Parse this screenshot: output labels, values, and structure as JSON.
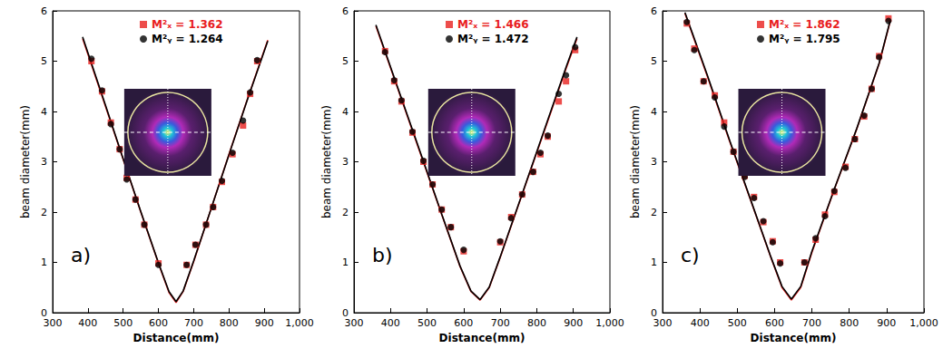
{
  "chart_data": [
    {
      "type": "scatter",
      "annotation": "a)",
      "x_label": "Distance(mm)",
      "y_label": "beam diameter(mm)",
      "xlim": [
        300,
        1000
      ],
      "xticks": [
        300,
        400,
        500,
        600,
        700,
        800,
        900,
        1000
      ],
      "ylim": [
        0,
        6
      ],
      "yticks": [
        0,
        1,
        2,
        3,
        4,
        5,
        6
      ],
      "grid": false,
      "series": [
        {
          "name": "M²ₓ = 1.362",
          "type": "scatter",
          "marker": "square",
          "color": "#e8201e",
          "x": [
            410,
            440,
            465,
            490,
            510,
            535,
            560,
            600,
            680,
            705,
            735,
            755,
            780,
            810,
            840,
            860,
            880
          ],
          "values": [
            5.0,
            4.4,
            3.78,
            3.25,
            2.68,
            2.25,
            1.75,
            0.98,
            0.95,
            1.35,
            1.75,
            2.1,
            2.6,
            3.15,
            3.72,
            4.35,
            5.0
          ]
        },
        {
          "name": "M²ᵧ = 1.264",
          "type": "scatter",
          "marker": "circle",
          "color": "#000000",
          "x": [
            410,
            440,
            465,
            490,
            510,
            535,
            560,
            600,
            680,
            705,
            735,
            755,
            780,
            810,
            840,
            860,
            880
          ],
          "values": [
            5.05,
            4.42,
            3.75,
            3.25,
            2.65,
            2.25,
            1.75,
            0.95,
            0.95,
            1.35,
            1.75,
            2.1,
            2.62,
            3.18,
            3.82,
            4.38,
            5.02
          ]
        },
        {
          "type": "line",
          "line_style": "solid",
          "color": "#e8201e",
          "x": [
            385,
            450,
            500,
            550,
            600,
            630,
            650,
            670,
            700,
            750,
            800,
            850,
            910
          ],
          "values": [
            5.45,
            4.1,
            3.05,
            2.0,
            0.98,
            0.4,
            0.2,
            0.42,
            1.02,
            2.08,
            3.15,
            4.2,
            5.42
          ]
        },
        {
          "type": "line",
          "line_style": "solid",
          "color": "#000000",
          "x": [
            385,
            450,
            500,
            550,
            600,
            630,
            650,
            670,
            700,
            750,
            800,
            850,
            910
          ],
          "values": [
            5.48,
            4.12,
            3.06,
            2.01,
            0.99,
            0.42,
            0.22,
            0.43,
            1.03,
            2.08,
            3.14,
            4.19,
            5.4
          ]
        }
      ]
    },
    {
      "type": "scatter",
      "annotation": "b)",
      "x_label": "Distance(mm)",
      "y_label": "beam diameter(mm)",
      "xlim": [
        300,
        1000
      ],
      "xticks": [
        300,
        400,
        500,
        600,
        700,
        800,
        900,
        1000
      ],
      "ylim": [
        0,
        6
      ],
      "yticks": [
        0,
        1,
        2,
        3,
        4,
        5,
        6
      ],
      "grid": false,
      "series": [
        {
          "name": "M²ₓ = 1.466",
          "type": "scatter",
          "marker": "square",
          "color": "#e8201e",
          "x": [
            385,
            410,
            430,
            460,
            490,
            515,
            540,
            565,
            600,
            700,
            730,
            760,
            790,
            810,
            830,
            860,
            880,
            905
          ],
          "values": [
            5.2,
            4.6,
            4.2,
            3.58,
            3.0,
            2.55,
            2.05,
            1.7,
            1.22,
            1.4,
            1.9,
            2.35,
            2.8,
            3.15,
            3.5,
            4.2,
            4.6,
            5.22
          ]
        },
        {
          "name": "M²ᵧ = 1.472",
          "type": "scatter",
          "marker": "circle",
          "color": "#000000",
          "x": [
            385,
            410,
            430,
            460,
            490,
            515,
            540,
            565,
            600,
            700,
            730,
            760,
            790,
            810,
            830,
            860,
            880,
            905
          ],
          "values": [
            5.18,
            4.62,
            4.22,
            3.6,
            3.02,
            2.55,
            2.05,
            1.7,
            1.25,
            1.42,
            1.88,
            2.35,
            2.8,
            3.18,
            3.52,
            4.35,
            4.72,
            5.28
          ]
        },
        {
          "type": "line",
          "line_style": "solid",
          "color": "#e8201e",
          "x": [
            360,
            420,
            480,
            540,
            590,
            620,
            645,
            670,
            700,
            760,
            820,
            880,
            910
          ],
          "values": [
            5.7,
            4.45,
            3.2,
            1.95,
            0.92,
            0.42,
            0.25,
            0.5,
            1.1,
            2.35,
            3.6,
            4.85,
            5.45
          ]
        },
        {
          "type": "line",
          "line_style": "solid",
          "color": "#000000",
          "x": [
            360,
            420,
            480,
            540,
            590,
            620,
            645,
            670,
            700,
            760,
            820,
            880,
            910
          ],
          "values": [
            5.72,
            4.47,
            3.22,
            1.96,
            0.93,
            0.43,
            0.26,
            0.51,
            1.11,
            2.36,
            3.62,
            4.88,
            5.48
          ]
        }
      ]
    },
    {
      "type": "scatter",
      "annotation": "c)",
      "x_label": "Distance(mm)",
      "y_label": "beam diameter(mm)",
      "xlim": [
        300,
        1000
      ],
      "xticks": [
        300,
        400,
        500,
        600,
        700,
        800,
        900,
        1000
      ],
      "ylim": [
        0,
        6
      ],
      "yticks": [
        0,
        1,
        2,
        3,
        4,
        5,
        6
      ],
      "grid": false,
      "series": [
        {
          "name": "M²ₓ = 1.862",
          "type": "scatter",
          "marker": "square",
          "color": "#e8201e",
          "x": [
            365,
            385,
            410,
            440,
            465,
            490,
            520,
            545,
            570,
            595,
            615,
            680,
            710,
            735,
            760,
            790,
            815,
            840,
            860,
            880,
            905
          ],
          "values": [
            5.75,
            5.25,
            4.6,
            4.32,
            3.78,
            3.2,
            2.72,
            2.3,
            1.8,
            1.42,
            1.0,
            1.0,
            1.45,
            1.95,
            2.4,
            2.9,
            3.45,
            3.9,
            4.45,
            5.1,
            5.85
          ]
        },
        {
          "name": "M²ᵧ = 1.795",
          "type": "scatter",
          "marker": "circle",
          "color": "#000000",
          "x": [
            365,
            385,
            410,
            440,
            465,
            490,
            520,
            545,
            570,
            595,
            615,
            680,
            710,
            735,
            760,
            790,
            815,
            840,
            860,
            880,
            905
          ],
          "values": [
            5.78,
            5.22,
            4.6,
            4.28,
            3.7,
            3.2,
            2.7,
            2.28,
            1.82,
            1.4,
            0.98,
            1.0,
            1.48,
            1.92,
            2.42,
            2.88,
            3.45,
            3.92,
            4.45,
            5.08,
            5.8
          ]
        },
        {
          "type": "line",
          "line_style": "solid",
          "color": "#e8201e",
          "x": [
            360,
            420,
            480,
            540,
            590,
            620,
            645,
            670,
            700,
            760,
            820,
            880,
            910
          ],
          "values": [
            5.95,
            4.7,
            3.4,
            2.15,
            1.1,
            0.5,
            0.25,
            0.5,
            1.2,
            2.45,
            3.65,
            4.95,
            5.8
          ]
        },
        {
          "type": "line",
          "line_style": "solid",
          "color": "#000000",
          "x": [
            360,
            420,
            480,
            540,
            590,
            620,
            645,
            670,
            700,
            760,
            820,
            880,
            910
          ],
          "values": [
            5.97,
            4.72,
            3.42,
            2.16,
            1.11,
            0.52,
            0.27,
            0.52,
            1.22,
            2.46,
            3.66,
            4.96,
            5.82
          ]
        }
      ]
    }
  ]
}
